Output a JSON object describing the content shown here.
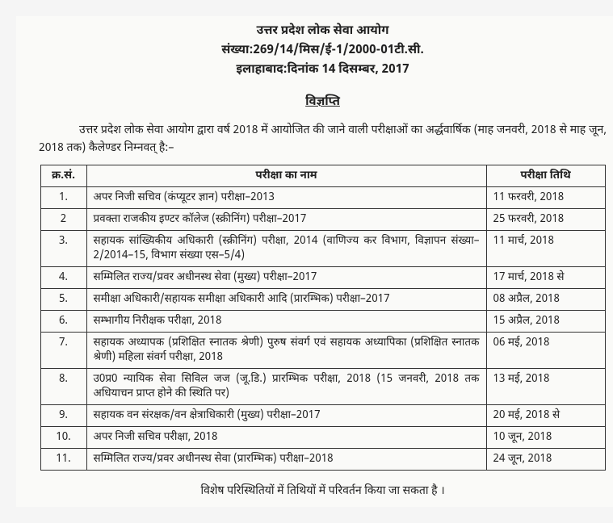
{
  "header": {
    "org": "उत्तर प्रदेश लोक सेवा आयोग",
    "ref": "संख्या:269/14/मिस/ई-1/2000-01टी.सी.",
    "place_date": "इलाहाबाद:दिनांक 14 दिसम्बर, 2017"
  },
  "notice_title": "विज्ञप्ति",
  "intro": "उत्तर प्रदेश लोक सेवा आयोग द्वारा वर्ष 2018 में आयोजित की जाने वाली परीक्षाओं का अर्द्धवार्षिक (माह जनवरी, 2018 से माह जून, 2018 तक) कैलेण्डर निम्नवत् है:–",
  "table": {
    "headers": {
      "sn": "क्र.सं.",
      "name": "परीक्षा का नाम",
      "date": "परीक्षा तिथि"
    },
    "rows": [
      {
        "sn": "1.",
        "name": "अपर निजी सचिव (कंप्यूटर ज्ञान) परीक्षा–2013",
        "date": "11 फरवरी, 2018"
      },
      {
        "sn": "2",
        "name": "प्रवक्ता राजकीय इण्टर कॉलेज (स्क्रीनिंग) परीक्षा–2017",
        "date": "25 फरवरी, 2018"
      },
      {
        "sn": "3.",
        "name": "सहायक सांख्यिकीय अधिकारी (स्क्रीनिंग) परीक्षा, 2014 (वाणिज्य कर विभाग, विज्ञापन संख्या–2/2014–15, विभाग संख्या एस–5/4)",
        "date": "11 मार्च, 2018"
      },
      {
        "sn": "4.",
        "name": "सम्मिलित राज्य/प्रवर अधीनस्थ सेवा (मुख्य) परीक्षा–2017",
        "date": "17 मार्च, 2018 से"
      },
      {
        "sn": "5.",
        "name": "समीक्षा अधिकारी/सहायक समीक्षा अधिकारी आदि (प्रारम्भिक) परीक्षा–2017",
        "date": "08 अप्रैल, 2018"
      },
      {
        "sn": "6.",
        "name": "सम्भागीय निरीक्षक परीक्षा, 2018",
        "date": "15 अप्रैल, 2018"
      },
      {
        "sn": "7.",
        "name": "सहायक अध्यापक (प्रशिक्षित स्नातक श्रेणी) पुरुष संवर्ग एवं सहायक अध्यापिका (प्रशिक्षित स्नातक श्रेणी) महिला संवर्ग परीक्षा, 2018",
        "date": "06 मई, 2018"
      },
      {
        "sn": "8.",
        "name": "उ0प्र0 न्यायिक सेवा सिविल जज (जू.डि.) प्रारम्भिक परीक्षा, 2018 (15 जनवरी, 2018 तक अधियाचन प्राप्त होने की स्थिति पर)",
        "date": "13 मई, 2018"
      },
      {
        "sn": "9.",
        "name": "सहायक वन संरक्षक/वन क्षेत्राधिकारी (मुख्य) परीक्षा–2017",
        "date": "20 मई, 2018 से"
      },
      {
        "sn": "10.",
        "name": "अपर निजी सचिव परीक्षा, 2018",
        "date": "10 जून, 2018"
      },
      {
        "sn": "11.",
        "name": "सम्मिलित राज्य/प्रवर अधीनस्थ सेवा (प्रारम्भिक) परीक्षा–2018",
        "date": "24 जून, 2018"
      }
    ]
  },
  "footnote": "विशेष परिस्थितियों में तिथियों में परिवर्तन किया जा सकता है ।"
}
